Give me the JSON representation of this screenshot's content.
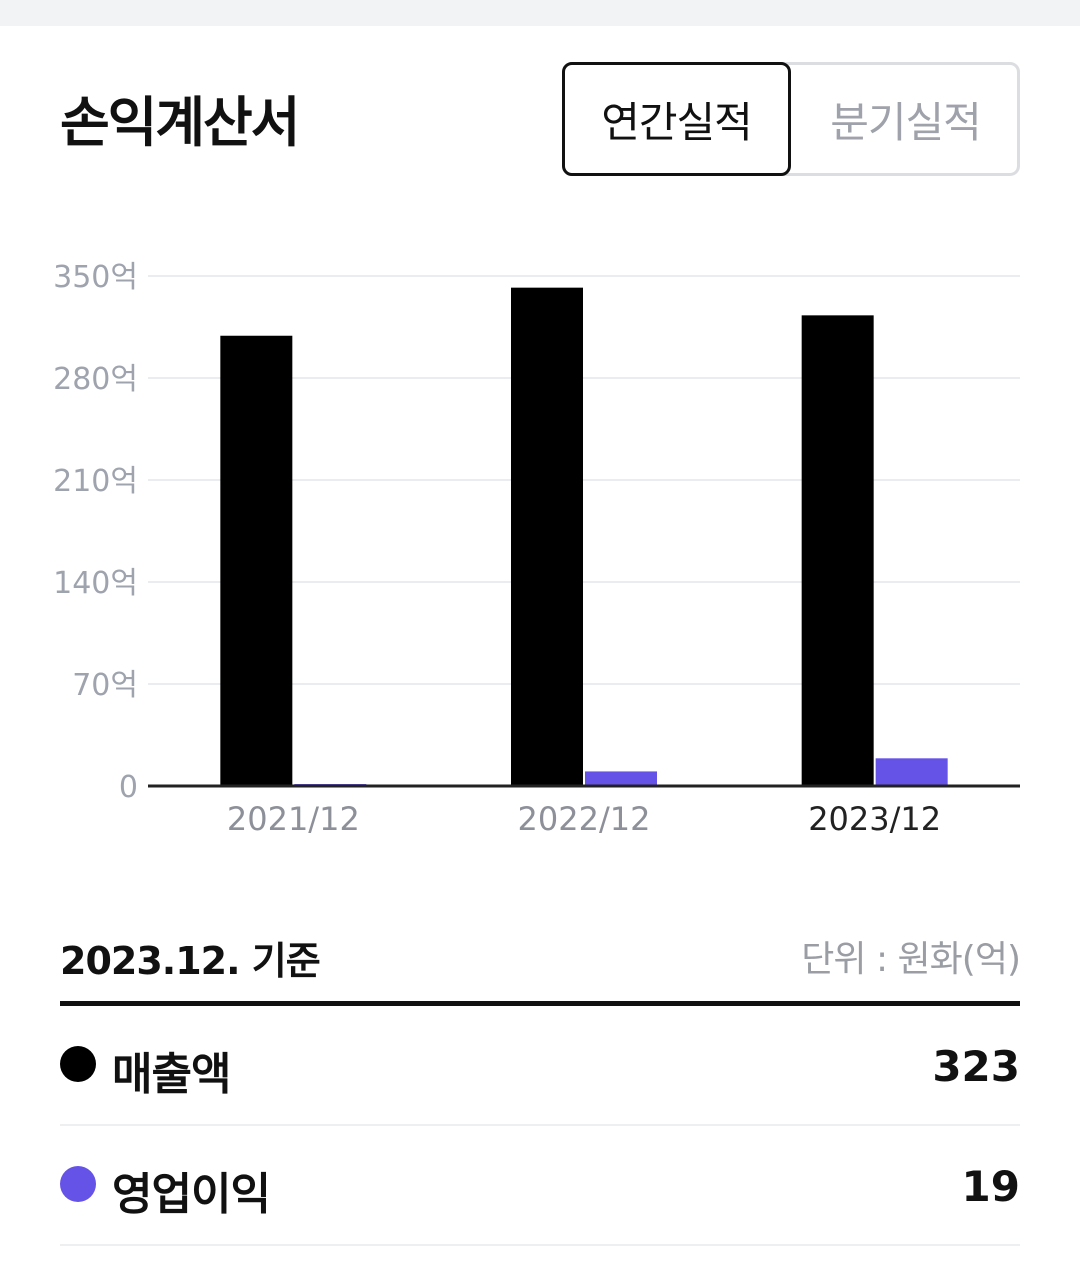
{
  "header": {
    "title": "손익계산서",
    "tabs": [
      {
        "label": "연간실적",
        "active": true
      },
      {
        "label": "분기실적",
        "active": false
      }
    ]
  },
  "chart_data": {
    "type": "bar",
    "categories": [
      "2021/12",
      "2022/12",
      "2023/12"
    ],
    "highlight_category": "2023/12",
    "series": [
      {
        "name": "매출액",
        "color": "#000000",
        "values": [
          309,
          342,
          323
        ]
      },
      {
        "name": "영업이익",
        "color": "#6553e8",
        "values": [
          1,
          10,
          19
        ]
      }
    ],
    "y_ticks": [
      0,
      70,
      140,
      210,
      280,
      350
    ],
    "y_tick_labels": [
      "0",
      "70억",
      "140억",
      "210억",
      "280억",
      "350억"
    ],
    "ylim": [
      0,
      350
    ],
    "grid": true,
    "legend": "below"
  },
  "summary": {
    "basis": "2023.12. 기준",
    "unit": "단위 : 원화(억)",
    "rows": [
      {
        "label": "매출액",
        "value": "323",
        "color": "#000000"
      },
      {
        "label": "영업이익",
        "value": "19",
        "color": "#6553e8"
      }
    ]
  }
}
